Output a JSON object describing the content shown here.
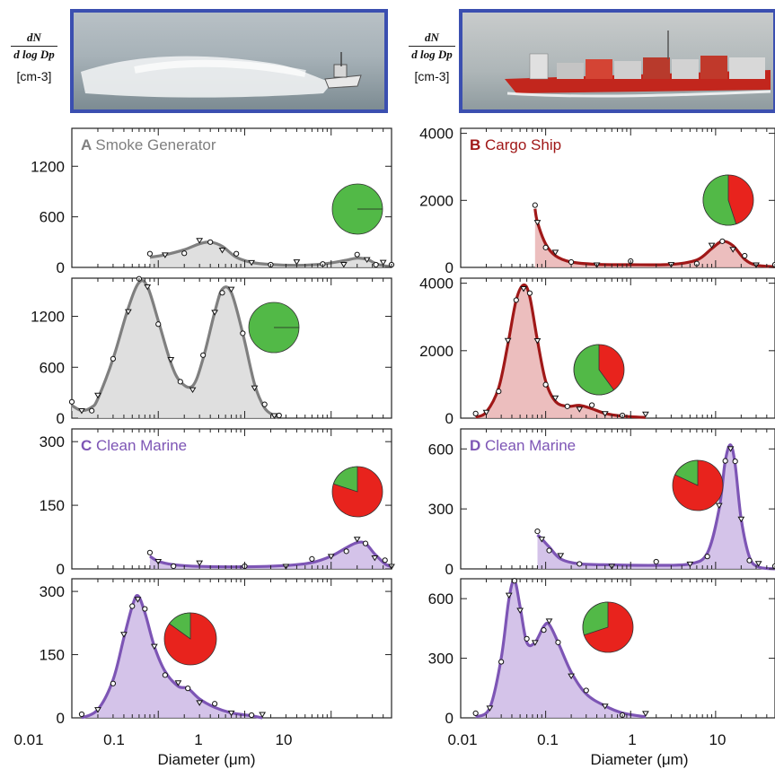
{
  "y_axis_label": {
    "numerator": "dN",
    "denominator": "d log Dp",
    "units": "[cm-3]"
  },
  "x_axis_label": "Diameter (μm)",
  "x_ticks": [
    "0.01",
    "0.1",
    "1",
    "10"
  ],
  "colors": {
    "smoke": "#7f7f7f",
    "smoke_fill": "#d9d9d9",
    "ship": "#a01818",
    "ship_fill": "#e9b3b3",
    "marine": "#7d55b5",
    "marine_fill": "#cdb9e5",
    "green": "#52b947",
    "red": "#e8231d",
    "photo_border": "#3b4fb0"
  },
  "photos": [
    {
      "subject": "fishing boat with smoke plume"
    },
    {
      "subject": "red cargo ship at sea"
    }
  ],
  "chart_data": [
    {
      "type": "area",
      "panel": "A-top",
      "label_letter": "A",
      "label_text": "Smoke Generator",
      "color_key": "smoke",
      "xscale": "log",
      "xlim": [
        0.01,
        50
      ],
      "ylim": [
        0,
        1650
      ],
      "yticks": [
        0,
        600,
        1200
      ],
      "pie": {
        "green": 1.0,
        "red": 0.0
      },
      "fit": [
        [
          0.08,
          120
        ],
        [
          0.12,
          150
        ],
        [
          0.2,
          210
        ],
        [
          0.3,
          280
        ],
        [
          0.4,
          300
        ],
        [
          0.55,
          250
        ],
        [
          0.8,
          120
        ],
        [
          1.2,
          60
        ],
        [
          2,
          35
        ],
        [
          4,
          25
        ],
        [
          8,
          40
        ],
        [
          14,
          80
        ],
        [
          20,
          110
        ],
        [
          26,
          95
        ],
        [
          33,
          45
        ],
        [
          40,
          20
        ],
        [
          50,
          10
        ]
      ]
    },
    {
      "type": "area",
      "panel": "A-bottom",
      "label_letter": "",
      "label_text": "",
      "color_key": "smoke",
      "xscale": "log",
      "xlim": [
        0.01,
        50
      ],
      "ylim": [
        0,
        1650
      ],
      "yticks": [
        0,
        600,
        1200
      ],
      "pie": {
        "green": 1.0,
        "red": 0.0
      },
      "fit": [
        [
          0.01,
          150
        ],
        [
          0.013,
          90
        ],
        [
          0.017,
          130
        ],
        [
          0.02,
          230
        ],
        [
          0.03,
          700
        ],
        [
          0.045,
          1300
        ],
        [
          0.06,
          1600
        ],
        [
          0.075,
          1550
        ],
        [
          0.1,
          1150
        ],
        [
          0.14,
          650
        ],
        [
          0.18,
          430
        ],
        [
          0.25,
          380
        ],
        [
          0.33,
          700
        ],
        [
          0.45,
          1250
        ],
        [
          0.55,
          1520
        ],
        [
          0.7,
          1480
        ],
        [
          0.95,
          1000
        ],
        [
          1.3,
          400
        ],
        [
          1.7,
          120
        ],
        [
          2.2,
          30
        ],
        [
          2.5,
          0
        ]
      ]
    },
    {
      "type": "area",
      "panel": "B-top",
      "label_letter": "B",
      "label_text": "Cargo Ship",
      "color_key": "ship",
      "xscale": "log",
      "xlim": [
        0.01,
        50
      ],
      "ylim": [
        0,
        4150
      ],
      "yticks": [
        0,
        2000,
        4000
      ],
      "pie": {
        "green": 0.55,
        "red": 0.45
      },
      "fit": [
        [
          0.075,
          1750
        ],
        [
          0.08,
          1350
        ],
        [
          0.1,
          700
        ],
        [
          0.13,
          350
        ],
        [
          0.2,
          160
        ],
        [
          0.4,
          90
        ],
        [
          1,
          80
        ],
        [
          3,
          90
        ],
        [
          6,
          220
        ],
        [
          9,
          560
        ],
        [
          12,
          780
        ],
        [
          16,
          650
        ],
        [
          22,
          240
        ],
        [
          30,
          70
        ],
        [
          50,
          20
        ]
      ]
    },
    {
      "type": "area",
      "panel": "B-bottom",
      "label_letter": "",
      "label_text": "",
      "color_key": "ship",
      "xscale": "log",
      "xlim": [
        0.01,
        50
      ],
      "ylim": [
        0,
        4150
      ],
      "yticks": [
        0,
        2000,
        4000
      ],
      "pie": {
        "green": 0.6,
        "red": 0.4
      },
      "fit": [
        [
          0.015,
          30
        ],
        [
          0.02,
          180
        ],
        [
          0.028,
          900
        ],
        [
          0.036,
          2200
        ],
        [
          0.045,
          3500
        ],
        [
          0.055,
          3950
        ],
        [
          0.065,
          3600
        ],
        [
          0.08,
          2300
        ],
        [
          0.1,
          1100
        ],
        [
          0.13,
          500
        ],
        [
          0.18,
          350
        ],
        [
          0.25,
          380
        ],
        [
          0.35,
          280
        ],
        [
          0.5,
          140
        ],
        [
          0.8,
          60
        ],
        [
          1.5,
          20
        ]
      ]
    },
    {
      "type": "area",
      "panel": "C-top",
      "label_letter": "C",
      "label_text": "Clean Marine",
      "color_key": "marine",
      "xscale": "log",
      "xlim": [
        0.01,
        50
      ],
      "ylim": [
        0,
        330
      ],
      "yticks": [
        0,
        150,
        300
      ],
      "pie": {
        "green": 0.2,
        "red": 0.8
      },
      "fit": [
        [
          0.08,
          30
        ],
        [
          0.1,
          18
        ],
        [
          0.15,
          10
        ],
        [
          0.3,
          6
        ],
        [
          1,
          5
        ],
        [
          3,
          8
        ],
        [
          6,
          15
        ],
        [
          10,
          30
        ],
        [
          15,
          50
        ],
        [
          20,
          62
        ],
        [
          25,
          60
        ],
        [
          32,
          35
        ],
        [
          42,
          12
        ],
        [
          50,
          5
        ]
      ]
    },
    {
      "type": "area",
      "panel": "C-bottom",
      "label_letter": "",
      "label_text": "",
      "color_key": "marine",
      "xscale": "log",
      "xlim": [
        0.01,
        50
      ],
      "ylim": [
        0,
        330
      ],
      "yticks": [
        0,
        150,
        300
      ],
      "pie": {
        "green": 0.15,
        "red": 0.85
      },
      "fit": [
        [
          0.013,
          0
        ],
        [
          0.02,
          20
        ],
        [
          0.03,
          90
        ],
        [
          0.04,
          190
        ],
        [
          0.05,
          265
        ],
        [
          0.058,
          290
        ],
        [
          0.07,
          250
        ],
        [
          0.09,
          170
        ],
        [
          0.12,
          110
        ],
        [
          0.17,
          75
        ],
        [
          0.22,
          70
        ],
        [
          0.3,
          45
        ],
        [
          0.45,
          25
        ],
        [
          0.7,
          12
        ],
        [
          1.2,
          5
        ],
        [
          1.6,
          0
        ]
      ]
    },
    {
      "type": "area",
      "panel": "D-top",
      "label_letter": "D",
      "label_text": "Clean Marine",
      "color_key": "marine",
      "xscale": "log",
      "xlim": [
        0.01,
        50
      ],
      "ylim": [
        0,
        700
      ],
      "yticks": [
        0,
        300,
        600
      ],
      "pie": {
        "green": 0.18,
        "red": 0.82
      },
      "fit": [
        [
          0.08,
          170
        ],
        [
          0.09,
          150
        ],
        [
          0.11,
          110
        ],
        [
          0.15,
          50
        ],
        [
          0.25,
          25
        ],
        [
          0.6,
          20
        ],
        [
          2,
          18
        ],
        [
          5,
          25
        ],
        [
          8,
          80
        ],
        [
          11,
          300
        ],
        [
          13,
          540
        ],
        [
          15,
          620
        ],
        [
          17,
          520
        ],
        [
          20,
          250
        ],
        [
          25,
          60
        ],
        [
          32,
          10
        ],
        [
          50,
          0
        ]
      ]
    },
    {
      "type": "area",
      "panel": "D-bottom",
      "label_letter": "",
      "label_text": "",
      "color_key": "marine",
      "xscale": "log",
      "xlim": [
        0.01,
        50
      ],
      "ylim": [
        0,
        700
      ],
      "yticks": [
        0,
        300,
        600
      ],
      "pie": {
        "green": 0.3,
        "red": 0.7
      },
      "fit": [
        [
          0.015,
          5
        ],
        [
          0.022,
          50
        ],
        [
          0.03,
          300
        ],
        [
          0.037,
          600
        ],
        [
          0.043,
          690
        ],
        [
          0.05,
          560
        ],
        [
          0.06,
          380
        ],
        [
          0.075,
          380
        ],
        [
          0.095,
          460
        ],
        [
          0.11,
          470
        ],
        [
          0.14,
          380
        ],
        [
          0.2,
          230
        ],
        [
          0.3,
          120
        ],
        [
          0.5,
          60
        ],
        [
          0.8,
          25
        ],
        [
          1.5,
          5
        ]
      ]
    }
  ]
}
